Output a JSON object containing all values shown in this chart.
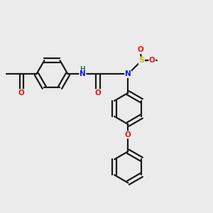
{
  "background_color": "#ebebeb",
  "bond_color": "#1a1a1a",
  "atom_colors": {
    "N": "#1010ee",
    "O": "#ee1010",
    "S": "#ccbb00",
    "H": "#336666",
    "C": "#1a1a1a"
  },
  "figsize": [
    3.0,
    3.0
  ],
  "dpi": 100,
  "bond_lw": 1.6,
  "font_size": 7.5,
  "ring_r": 0.75
}
